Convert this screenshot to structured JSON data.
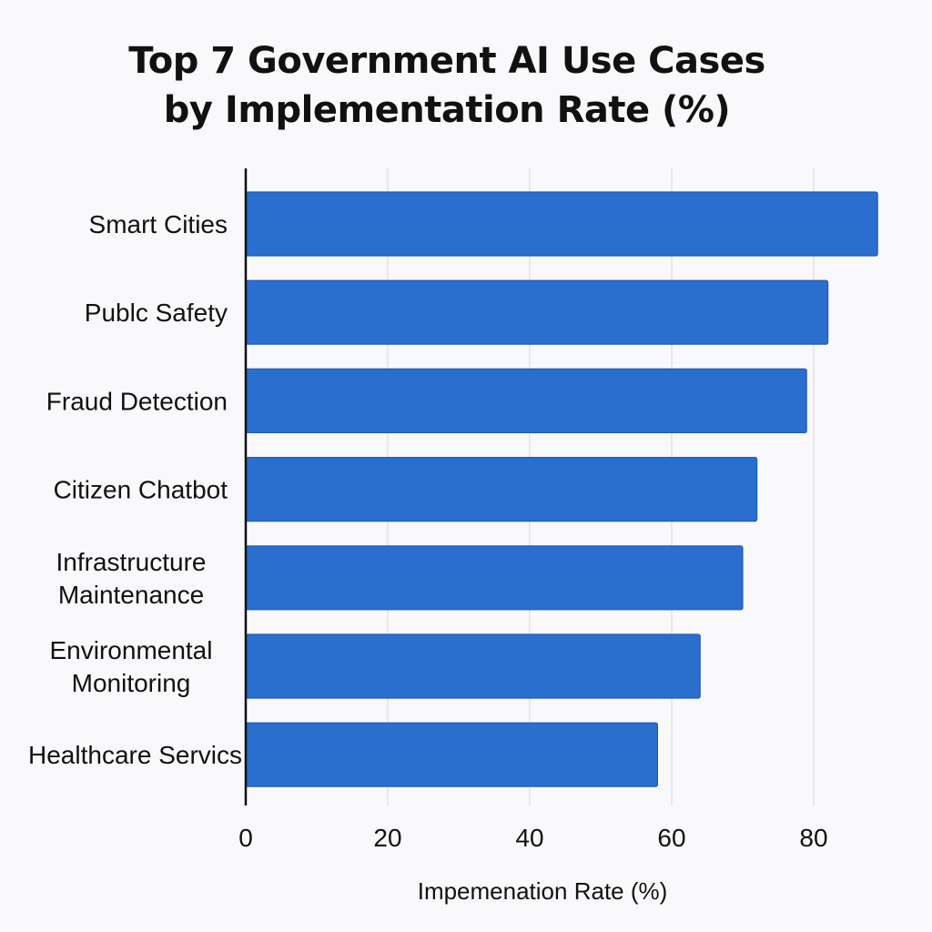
{
  "chart_data": {
    "type": "bar",
    "orientation": "horizontal",
    "title": [
      "Top 7 Government AI Use Cases",
      "by Implementation Rate (%)"
    ],
    "xlabel": "Impemenation Rate (%)",
    "ylabel": "",
    "categories": [
      "Smart Cities",
      "Publc Safety",
      "Fraud Detection",
      "Citizen Chatbot",
      "Infrastructure\nMaintenance",
      "Environmental\nMonitoring",
      "Healthcare Servics"
    ],
    "values": [
      89,
      82,
      79,
      72,
      70,
      64,
      58
    ],
    "xlim": [
      0,
      89
    ],
    "xticks": [
      0,
      20,
      40,
      60,
      80
    ],
    "grid": "vertical",
    "bar_color": "#2a6fce",
    "bar_edge_color": "#1e5bb8"
  }
}
